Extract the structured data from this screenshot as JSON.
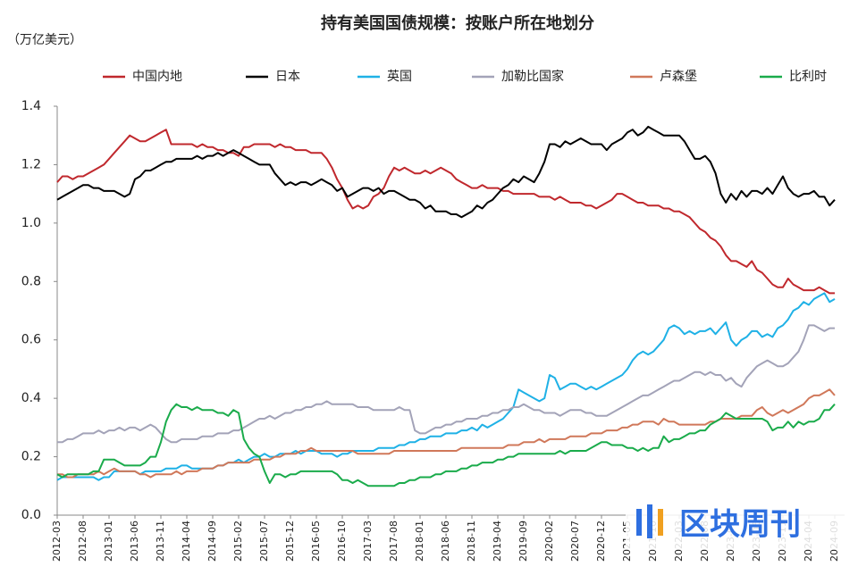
{
  "chart_data": {
    "type": "line",
    "title": "持有美国国债规模：按账户所在地划分",
    "y_label": "（万亿美元）",
    "watermark": "区块周刊",
    "legend": "top",
    "ylim": [
      0,
      1.4
    ],
    "yticks": [
      {
        "value": 0,
        "label": "0.0"
      },
      0.2,
      0.4,
      0.6,
      0.8,
      {
        "value": 1,
        "label": "1.0"
      },
      1.2,
      1.4
    ],
    "categories": [
      "2012-03",
      null,
      null,
      null,
      null,
      "2012-08",
      null,
      null,
      null,
      null,
      "2013-01",
      null,
      null,
      null,
      null,
      "2013-06",
      null,
      null,
      null,
      null,
      "2013-11",
      null,
      null,
      null,
      null,
      "2014-04",
      null,
      null,
      null,
      null,
      "2014-09",
      null,
      null,
      null,
      null,
      "2015-02",
      null,
      null,
      null,
      null,
      "2015-07",
      null,
      null,
      null,
      null,
      "2015-12",
      null,
      null,
      null,
      null,
      "2016-05",
      null,
      null,
      null,
      null,
      "2016-10",
      null,
      null,
      null,
      null,
      "2017-03",
      null,
      null,
      null,
      null,
      "2017-08",
      null,
      null,
      null,
      null,
      "2018-01",
      null,
      null,
      null,
      null,
      "2018-06",
      null,
      null,
      null,
      null,
      "2018-11",
      null,
      null,
      null,
      null,
      "2019-04",
      null,
      null,
      null,
      null,
      "2019-09",
      null,
      null,
      null,
      null,
      "2020-02",
      null,
      null,
      null,
      null,
      "2020-07",
      null,
      null,
      null,
      null,
      "2020-12",
      null,
      null,
      null,
      null,
      "2021-05",
      null,
      null,
      null,
      null,
      "2021-10",
      null,
      null,
      null,
      null,
      "2022-03",
      null,
      null,
      null,
      null,
      "2022-08",
      null,
      null,
      null,
      null,
      "2023-01",
      null,
      null,
      null,
      null,
      "2023-06",
      null,
      null,
      null,
      null,
      "2023-11",
      null,
      null,
      null,
      null,
      "2024-04",
      null,
      null,
      null,
      null,
      "2024-09"
    ],
    "series": [
      {
        "name": "中国内地",
        "color": "#c0282d",
        "values": [
          1.14,
          1.16,
          1.16,
          1.15,
          1.16,
          1.16,
          1.17,
          1.18,
          1.19,
          1.2,
          1.22,
          1.24,
          1.26,
          1.28,
          1.3,
          1.29,
          1.28,
          1.28,
          1.29,
          1.3,
          1.31,
          1.32,
          1.27,
          1.27,
          1.27,
          1.27,
          1.27,
          1.26,
          1.27,
          1.26,
          1.26,
          1.25,
          1.25,
          1.24,
          1.24,
          1.23,
          1.26,
          1.26,
          1.27,
          1.27,
          1.27,
          1.27,
          1.26,
          1.27,
          1.26,
          1.26,
          1.25,
          1.25,
          1.25,
          1.24,
          1.24,
          1.24,
          1.22,
          1.19,
          1.15,
          1.12,
          1.08,
          1.05,
          1.06,
          1.05,
          1.06,
          1.09,
          1.1,
          1.12,
          1.16,
          1.19,
          1.18,
          1.19,
          1.18,
          1.17,
          1.17,
          1.18,
          1.17,
          1.18,
          1.19,
          1.18,
          1.17,
          1.15,
          1.14,
          1.13,
          1.12,
          1.12,
          1.13,
          1.12,
          1.12,
          1.12,
          1.11,
          1.11,
          1.1,
          1.1,
          1.1,
          1.1,
          1.1,
          1.09,
          1.09,
          1.09,
          1.08,
          1.09,
          1.08,
          1.07,
          1.07,
          1.07,
          1.06,
          1.06,
          1.05,
          1.06,
          1.07,
          1.08,
          1.1,
          1.1,
          1.09,
          1.08,
          1.07,
          1.07,
          1.06,
          1.06,
          1.06,
          1.05,
          1.05,
          1.04,
          1.04,
          1.03,
          1.02,
          1.0,
          0.98,
          0.97,
          0.95,
          0.94,
          0.92,
          0.89,
          0.87,
          0.87,
          0.86,
          0.85,
          0.87,
          0.84,
          0.83,
          0.81,
          0.79,
          0.78,
          0.78,
          0.81,
          0.79,
          0.78,
          0.77,
          0.77,
          0.77,
          0.78,
          0.77,
          0.76,
          0.76
        ]
      },
      {
        "name": "日本",
        "color": "#000000",
        "values": [
          1.08,
          1.09,
          1.1,
          1.11,
          1.12,
          1.13,
          1.13,
          1.12,
          1.12,
          1.11,
          1.11,
          1.11,
          1.1,
          1.09,
          1.1,
          1.15,
          1.16,
          1.18,
          1.18,
          1.19,
          1.2,
          1.21,
          1.21,
          1.22,
          1.22,
          1.22,
          1.22,
          1.23,
          1.22,
          1.23,
          1.23,
          1.24,
          1.23,
          1.24,
          1.25,
          1.24,
          1.23,
          1.22,
          1.21,
          1.2,
          1.2,
          1.2,
          1.17,
          1.15,
          1.13,
          1.14,
          1.13,
          1.14,
          1.14,
          1.13,
          1.14,
          1.15,
          1.14,
          1.13,
          1.11,
          1.12,
          1.09,
          1.1,
          1.11,
          1.12,
          1.12,
          1.11,
          1.12,
          1.1,
          1.11,
          1.11,
          1.1,
          1.09,
          1.08,
          1.08,
          1.07,
          1.05,
          1.06,
          1.04,
          1.04,
          1.04,
          1.03,
          1.03,
          1.02,
          1.03,
          1.04,
          1.06,
          1.05,
          1.07,
          1.08,
          1.1,
          1.12,
          1.13,
          1.15,
          1.14,
          1.16,
          1.15,
          1.14,
          1.17,
          1.21,
          1.27,
          1.27,
          1.26,
          1.28,
          1.27,
          1.28,
          1.29,
          1.28,
          1.27,
          1.27,
          1.27,
          1.25,
          1.27,
          1.28,
          1.29,
          1.31,
          1.32,
          1.3,
          1.31,
          1.33,
          1.32,
          1.31,
          1.3,
          1.3,
          1.3,
          1.3,
          1.28,
          1.25,
          1.22,
          1.22,
          1.23,
          1.21,
          1.17,
          1.1,
          1.07,
          1.1,
          1.08,
          1.11,
          1.09,
          1.11,
          1.11,
          1.1,
          1.12,
          1.1,
          1.13,
          1.16,
          1.12,
          1.1,
          1.09,
          1.1,
          1.1,
          1.11,
          1.09,
          1.09,
          1.06,
          1.08
        ]
      },
      {
        "name": "英国",
        "color": "#1fb1e6",
        "values": [
          0.12,
          0.13,
          0.13,
          0.13,
          0.13,
          0.13,
          0.13,
          0.13,
          0.12,
          0.13,
          0.13,
          0.15,
          0.15,
          0.15,
          0.15,
          0.15,
          0.14,
          0.15,
          0.15,
          0.15,
          0.15,
          0.16,
          0.16,
          0.16,
          0.17,
          0.17,
          0.16,
          0.16,
          0.16,
          0.16,
          0.16,
          0.17,
          0.17,
          0.18,
          0.18,
          0.19,
          0.18,
          0.19,
          0.2,
          0.2,
          0.21,
          0.2,
          0.2,
          0.21,
          0.21,
          0.21,
          0.22,
          0.21,
          0.22,
          0.22,
          0.22,
          0.21,
          0.21,
          0.21,
          0.2,
          0.21,
          0.21,
          0.22,
          0.22,
          0.22,
          0.22,
          0.22,
          0.23,
          0.23,
          0.23,
          0.23,
          0.24,
          0.24,
          0.25,
          0.25,
          0.26,
          0.26,
          0.27,
          0.27,
          0.27,
          0.28,
          0.28,
          0.28,
          0.29,
          0.29,
          0.3,
          0.29,
          0.31,
          0.3,
          0.31,
          0.32,
          0.33,
          0.35,
          0.37,
          0.43,
          0.42,
          0.41,
          0.4,
          0.39,
          0.4,
          0.48,
          0.47,
          0.43,
          0.44,
          0.45,
          0.45,
          0.44,
          0.43,
          0.44,
          0.43,
          0.44,
          0.45,
          0.46,
          0.47,
          0.48,
          0.5,
          0.53,
          0.55,
          0.56,
          0.55,
          0.56,
          0.58,
          0.6,
          0.64,
          0.65,
          0.64,
          0.62,
          0.63,
          0.62,
          0.63,
          0.63,
          0.64,
          0.62,
          0.64,
          0.66,
          0.6,
          0.58,
          0.6,
          0.61,
          0.63,
          0.63,
          0.61,
          0.62,
          0.61,
          0.64,
          0.65,
          0.67,
          0.7,
          0.71,
          0.73,
          0.72,
          0.74,
          0.75,
          0.76,
          0.73,
          0.74
        ]
      },
      {
        "name": "加勒比国家",
        "color": "#a3a3b8",
        "values": [
          0.25,
          0.25,
          0.26,
          0.26,
          0.27,
          0.28,
          0.28,
          0.28,
          0.29,
          0.28,
          0.29,
          0.29,
          0.3,
          0.29,
          0.3,
          0.3,
          0.29,
          0.3,
          0.31,
          0.3,
          0.28,
          0.26,
          0.25,
          0.25,
          0.26,
          0.26,
          0.26,
          0.26,
          0.27,
          0.27,
          0.27,
          0.28,
          0.28,
          0.28,
          0.29,
          0.29,
          0.3,
          0.31,
          0.32,
          0.33,
          0.33,
          0.34,
          0.33,
          0.34,
          0.35,
          0.35,
          0.36,
          0.36,
          0.37,
          0.37,
          0.38,
          0.38,
          0.39,
          0.38,
          0.38,
          0.38,
          0.38,
          0.38,
          0.37,
          0.37,
          0.37,
          0.36,
          0.36,
          0.36,
          0.36,
          0.36,
          0.37,
          0.36,
          0.36,
          0.29,
          0.28,
          0.28,
          0.29,
          0.3,
          0.3,
          0.31,
          0.31,
          0.32,
          0.32,
          0.33,
          0.33,
          0.33,
          0.34,
          0.34,
          0.35,
          0.35,
          0.36,
          0.36,
          0.37,
          0.37,
          0.38,
          0.37,
          0.36,
          0.36,
          0.35,
          0.35,
          0.35,
          0.34,
          0.35,
          0.36,
          0.36,
          0.36,
          0.35,
          0.35,
          0.34,
          0.34,
          0.34,
          0.35,
          0.36,
          0.37,
          0.38,
          0.39,
          0.4,
          0.41,
          0.41,
          0.42,
          0.43,
          0.44,
          0.45,
          0.46,
          0.46,
          0.47,
          0.48,
          0.49,
          0.49,
          0.48,
          0.49,
          0.48,
          0.48,
          0.46,
          0.47,
          0.45,
          0.44,
          0.47,
          0.49,
          0.51,
          0.52,
          0.53,
          0.52,
          0.51,
          0.51,
          0.52,
          0.54,
          0.56,
          0.6,
          0.65,
          0.65,
          0.64,
          0.63,
          0.64,
          0.64
        ]
      },
      {
        "name": "卢森堡",
        "color": "#d0785a",
        "values": [
          0.14,
          0.14,
          0.13,
          0.13,
          0.14,
          0.14,
          0.14,
          0.14,
          0.15,
          0.14,
          0.15,
          0.16,
          0.15,
          0.15,
          0.15,
          0.15,
          0.14,
          0.14,
          0.13,
          0.14,
          0.14,
          0.14,
          0.14,
          0.15,
          0.14,
          0.15,
          0.15,
          0.15,
          0.16,
          0.16,
          0.16,
          0.17,
          0.17,
          0.18,
          0.18,
          0.18,
          0.18,
          0.18,
          0.19,
          0.19,
          0.19,
          0.19,
          0.2,
          0.2,
          0.21,
          0.21,
          0.21,
          0.22,
          0.22,
          0.23,
          0.22,
          0.22,
          0.22,
          0.22,
          0.22,
          0.22,
          0.22,
          0.22,
          0.21,
          0.21,
          0.21,
          0.21,
          0.21,
          0.21,
          0.21,
          0.22,
          0.22,
          0.22,
          0.22,
          0.22,
          0.22,
          0.22,
          0.22,
          0.22,
          0.22,
          0.22,
          0.22,
          0.22,
          0.23,
          0.23,
          0.23,
          0.23,
          0.23,
          0.23,
          0.23,
          0.23,
          0.23,
          0.24,
          0.24,
          0.24,
          0.25,
          0.25,
          0.25,
          0.26,
          0.25,
          0.26,
          0.26,
          0.26,
          0.26,
          0.27,
          0.27,
          0.27,
          0.27,
          0.28,
          0.28,
          0.28,
          0.29,
          0.29,
          0.29,
          0.3,
          0.3,
          0.31,
          0.31,
          0.32,
          0.32,
          0.32,
          0.31,
          0.33,
          0.32,
          0.32,
          0.31,
          0.31,
          0.31,
          0.31,
          0.31,
          0.31,
          0.32,
          0.32,
          0.33,
          0.33,
          0.33,
          0.33,
          0.34,
          0.34,
          0.34,
          0.36,
          0.37,
          0.35,
          0.34,
          0.35,
          0.36,
          0.35,
          0.36,
          0.37,
          0.38,
          0.4,
          0.41,
          0.41,
          0.42,
          0.43,
          0.41
        ]
      },
      {
        "name": "比利时",
        "color": "#1aab4b",
        "values": [
          0.14,
          0.13,
          0.14,
          0.14,
          0.14,
          0.14,
          0.14,
          0.15,
          0.15,
          0.19,
          0.19,
          0.19,
          0.18,
          0.17,
          0.17,
          0.17,
          0.17,
          0.18,
          0.2,
          0.2,
          0.25,
          0.32,
          0.36,
          0.38,
          0.37,
          0.37,
          0.36,
          0.37,
          0.36,
          0.36,
          0.36,
          0.35,
          0.35,
          0.34,
          0.36,
          0.35,
          0.26,
          0.23,
          0.21,
          0.2,
          0.15,
          0.11,
          0.14,
          0.14,
          0.13,
          0.14,
          0.14,
          0.15,
          0.15,
          0.15,
          0.15,
          0.15,
          0.15,
          0.15,
          0.14,
          0.12,
          0.12,
          0.11,
          0.12,
          0.11,
          0.1,
          0.1,
          0.1,
          0.1,
          0.1,
          0.1,
          0.11,
          0.11,
          0.12,
          0.12,
          0.13,
          0.13,
          0.13,
          0.14,
          0.14,
          0.15,
          0.15,
          0.15,
          0.16,
          0.16,
          0.17,
          0.17,
          0.18,
          0.18,
          0.18,
          0.19,
          0.19,
          0.2,
          0.2,
          0.21,
          0.21,
          0.21,
          0.21,
          0.21,
          0.21,
          0.21,
          0.21,
          0.22,
          0.21,
          0.22,
          0.22,
          0.22,
          0.22,
          0.23,
          0.24,
          0.25,
          0.25,
          0.24,
          0.24,
          0.24,
          0.23,
          0.23,
          0.22,
          0.23,
          0.22,
          0.23,
          0.23,
          0.27,
          0.25,
          0.26,
          0.26,
          0.27,
          0.28,
          0.28,
          0.29,
          0.29,
          0.31,
          0.32,
          0.33,
          0.35,
          0.34,
          0.33,
          0.33,
          0.33,
          0.33,
          0.33,
          0.33,
          0.32,
          0.29,
          0.3,
          0.3,
          0.32,
          0.3,
          0.32,
          0.31,
          0.32,
          0.32,
          0.33,
          0.36,
          0.36,
          0.38
        ]
      }
    ]
  }
}
